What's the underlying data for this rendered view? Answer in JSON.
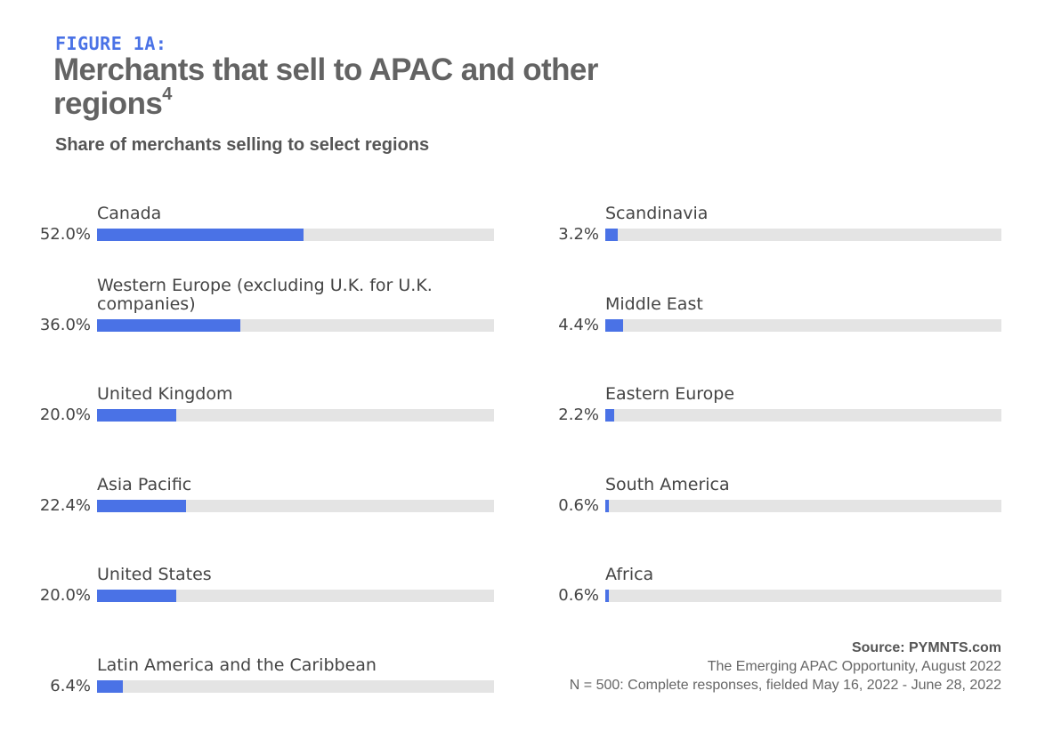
{
  "header": {
    "figure_label": "FIGURE 1A:",
    "title": "Merchants that sell to APAC and other regions",
    "title_footnote": "4",
    "subtitle": "Share of merchants selling to select regions"
  },
  "chart_data": {
    "type": "bar",
    "orientation": "horizontal",
    "unit": "%",
    "xlim": [
      0,
      100
    ],
    "columns": [
      [
        {
          "category": "Canada",
          "value": 52.0,
          "value_label": "52.0%"
        },
        {
          "category": "Western Europe (excluding U.K. for U.K. companies)",
          "value": 36.0,
          "value_label": "36.0%"
        },
        {
          "category": "United Kingdom",
          "value": 20.0,
          "value_label": "20.0%"
        },
        {
          "category": "Asia Pacific",
          "value": 22.4,
          "value_label": "22.4%"
        },
        {
          "category": "United States",
          "value": 20.0,
          "value_label": "20.0%"
        },
        {
          "category": "Latin America and the Caribbean",
          "value": 6.4,
          "value_label": "6.4%"
        }
      ],
      [
        {
          "category": "Scandinavia",
          "value": 3.2,
          "value_label": "3.2%"
        },
        {
          "category": "Middle East",
          "value": 4.4,
          "value_label": "4.4%"
        },
        {
          "category": "Eastern Europe",
          "value": 2.2,
          "value_label": "2.2%"
        },
        {
          "category": "South America",
          "value": 0.6,
          "value_label": "0.6%"
        },
        {
          "category": "Africa",
          "value": 0.6,
          "value_label": "0.6%"
        }
      ]
    ]
  },
  "source": {
    "title": "Source: PYMNTS.com",
    "line1": "The Emerging APAC Opportunity, August 2022",
    "line2": "N = 500: Complete responses, fielded May 16, 2022 - June 28, 2022"
  },
  "colors": {
    "accent": "#4a72e6",
    "track": "#e4e4e4"
  }
}
